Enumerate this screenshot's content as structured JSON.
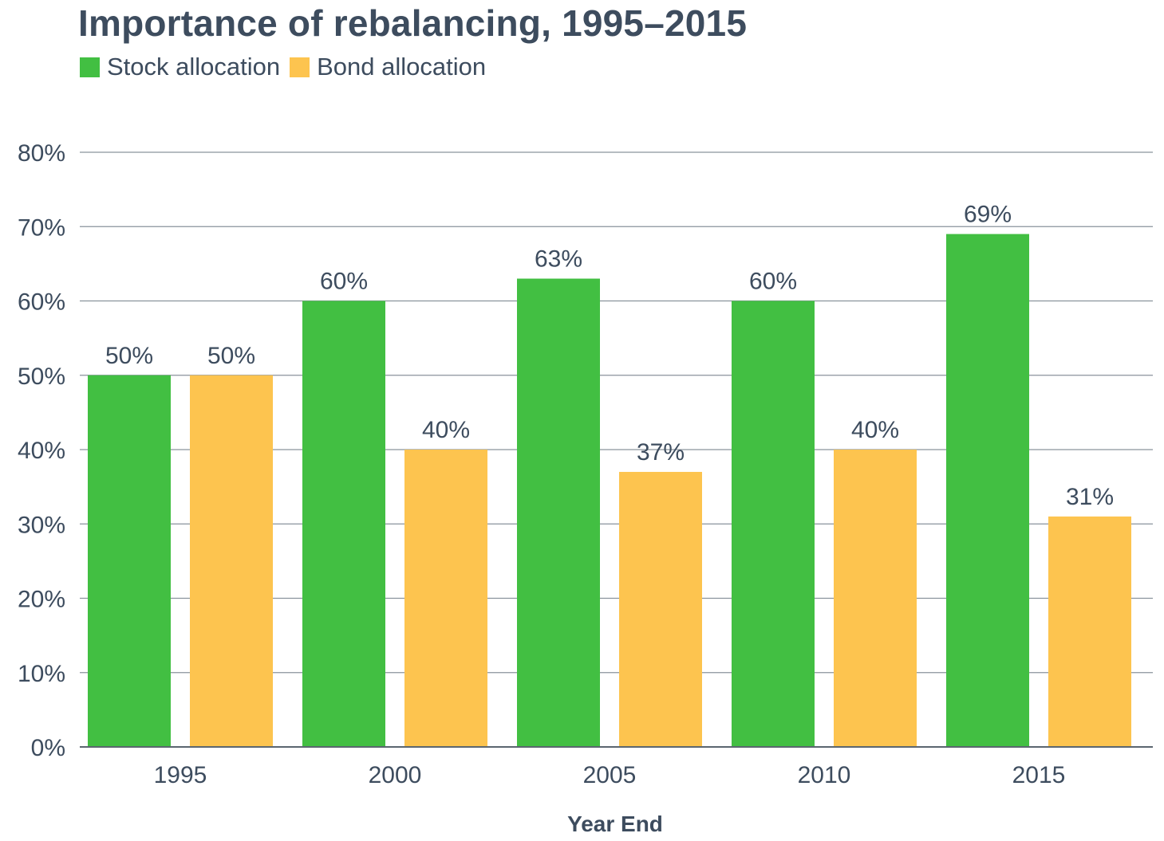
{
  "chart_data": {
    "type": "bar",
    "title": "Importance of rebalancing, 1995–2015",
    "xlabel": "Year End",
    "ylabel": "",
    "categories": [
      "1995",
      "2000",
      "2005",
      "2010",
      "2015"
    ],
    "series": [
      {
        "name": "Stock allocation",
        "color": "#42bf42",
        "values": [
          50,
          60,
          63,
          60,
          69
        ],
        "labels": [
          "50%",
          "60%",
          "63%",
          "60%",
          "69%"
        ]
      },
      {
        "name": "Bond allocation",
        "color": "#fdc44f",
        "values": [
          50,
          40,
          37,
          40,
          31
        ],
        "labels": [
          "50%",
          "40%",
          "37%",
          "40%",
          "31%"
        ]
      }
    ],
    "ylim": [
      0,
      80
    ],
    "yticks": [
      0,
      10,
      20,
      30,
      40,
      50,
      60,
      70,
      80
    ],
    "ytick_labels": [
      "0%",
      "10%",
      "20%",
      "30%",
      "40%",
      "50%",
      "60%",
      "70%",
      "80%"
    ],
    "grid": true,
    "legend_position": "top-left"
  },
  "colors": {
    "text": "#3d4c5e",
    "grid": "#8a939c",
    "axis": "#5b6670"
  }
}
